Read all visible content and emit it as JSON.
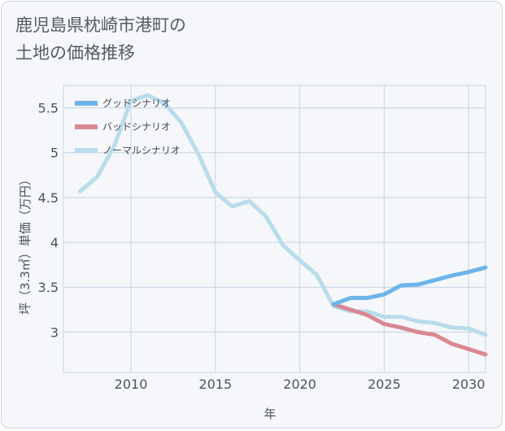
{
  "title_lines": [
    "鹿児島県枕崎市港町の",
    "土地の価格推移"
  ],
  "chart_data": {
    "type": "line",
    "xlabel": "年",
    "ylabel": "坪（3.3㎡）単価（万円）",
    "xlim": [
      2006,
      2031
    ],
    "ylim": [
      2.55,
      5.75
    ],
    "x_ticks": [
      2010,
      2015,
      2020,
      2025,
      2030
    ],
    "y_ticks": [
      3,
      3.5,
      4,
      4.5,
      5,
      5.5
    ],
    "grid": true,
    "legend_position": "top-left",
    "series": [
      {
        "name": "グッドシナリオ",
        "color": "#6cb4ea",
        "x": [
          2022,
          2023,
          2024,
          2025,
          2026,
          2027,
          2028,
          2029,
          2030,
          2031
        ],
        "values": [
          3.31,
          3.38,
          3.38,
          3.42,
          3.52,
          3.53,
          3.58,
          3.63,
          3.67,
          3.72
        ]
      },
      {
        "name": "バッドシナリオ",
        "color": "#d98891",
        "x": [
          2022,
          2023,
          2024,
          2025,
          2026,
          2027,
          2028,
          2029,
          2030,
          2031
        ],
        "values": [
          3.31,
          3.25,
          3.19,
          3.09,
          3.05,
          3.0,
          2.97,
          2.87,
          2.81,
          2.75
        ]
      },
      {
        "name": "ノーマルシナリオ",
        "color": "#b9dcec",
        "x": [
          2007,
          2008,
          2009,
          2010,
          2011,
          2012,
          2013,
          2014,
          2015,
          2016,
          2017,
          2018,
          2019,
          2020,
          2021,
          2022,
          2023,
          2024,
          2025,
          2026,
          2027,
          2028,
          2029,
          2030,
          2031
        ],
        "values": [
          4.57,
          4.73,
          5.07,
          5.58,
          5.64,
          5.55,
          5.33,
          4.98,
          4.56,
          4.4,
          4.46,
          4.29,
          3.97,
          3.8,
          3.64,
          3.29,
          3.23,
          3.23,
          3.17,
          3.17,
          3.12,
          3.1,
          3.05,
          3.04,
          2.97
        ]
      }
    ]
  }
}
